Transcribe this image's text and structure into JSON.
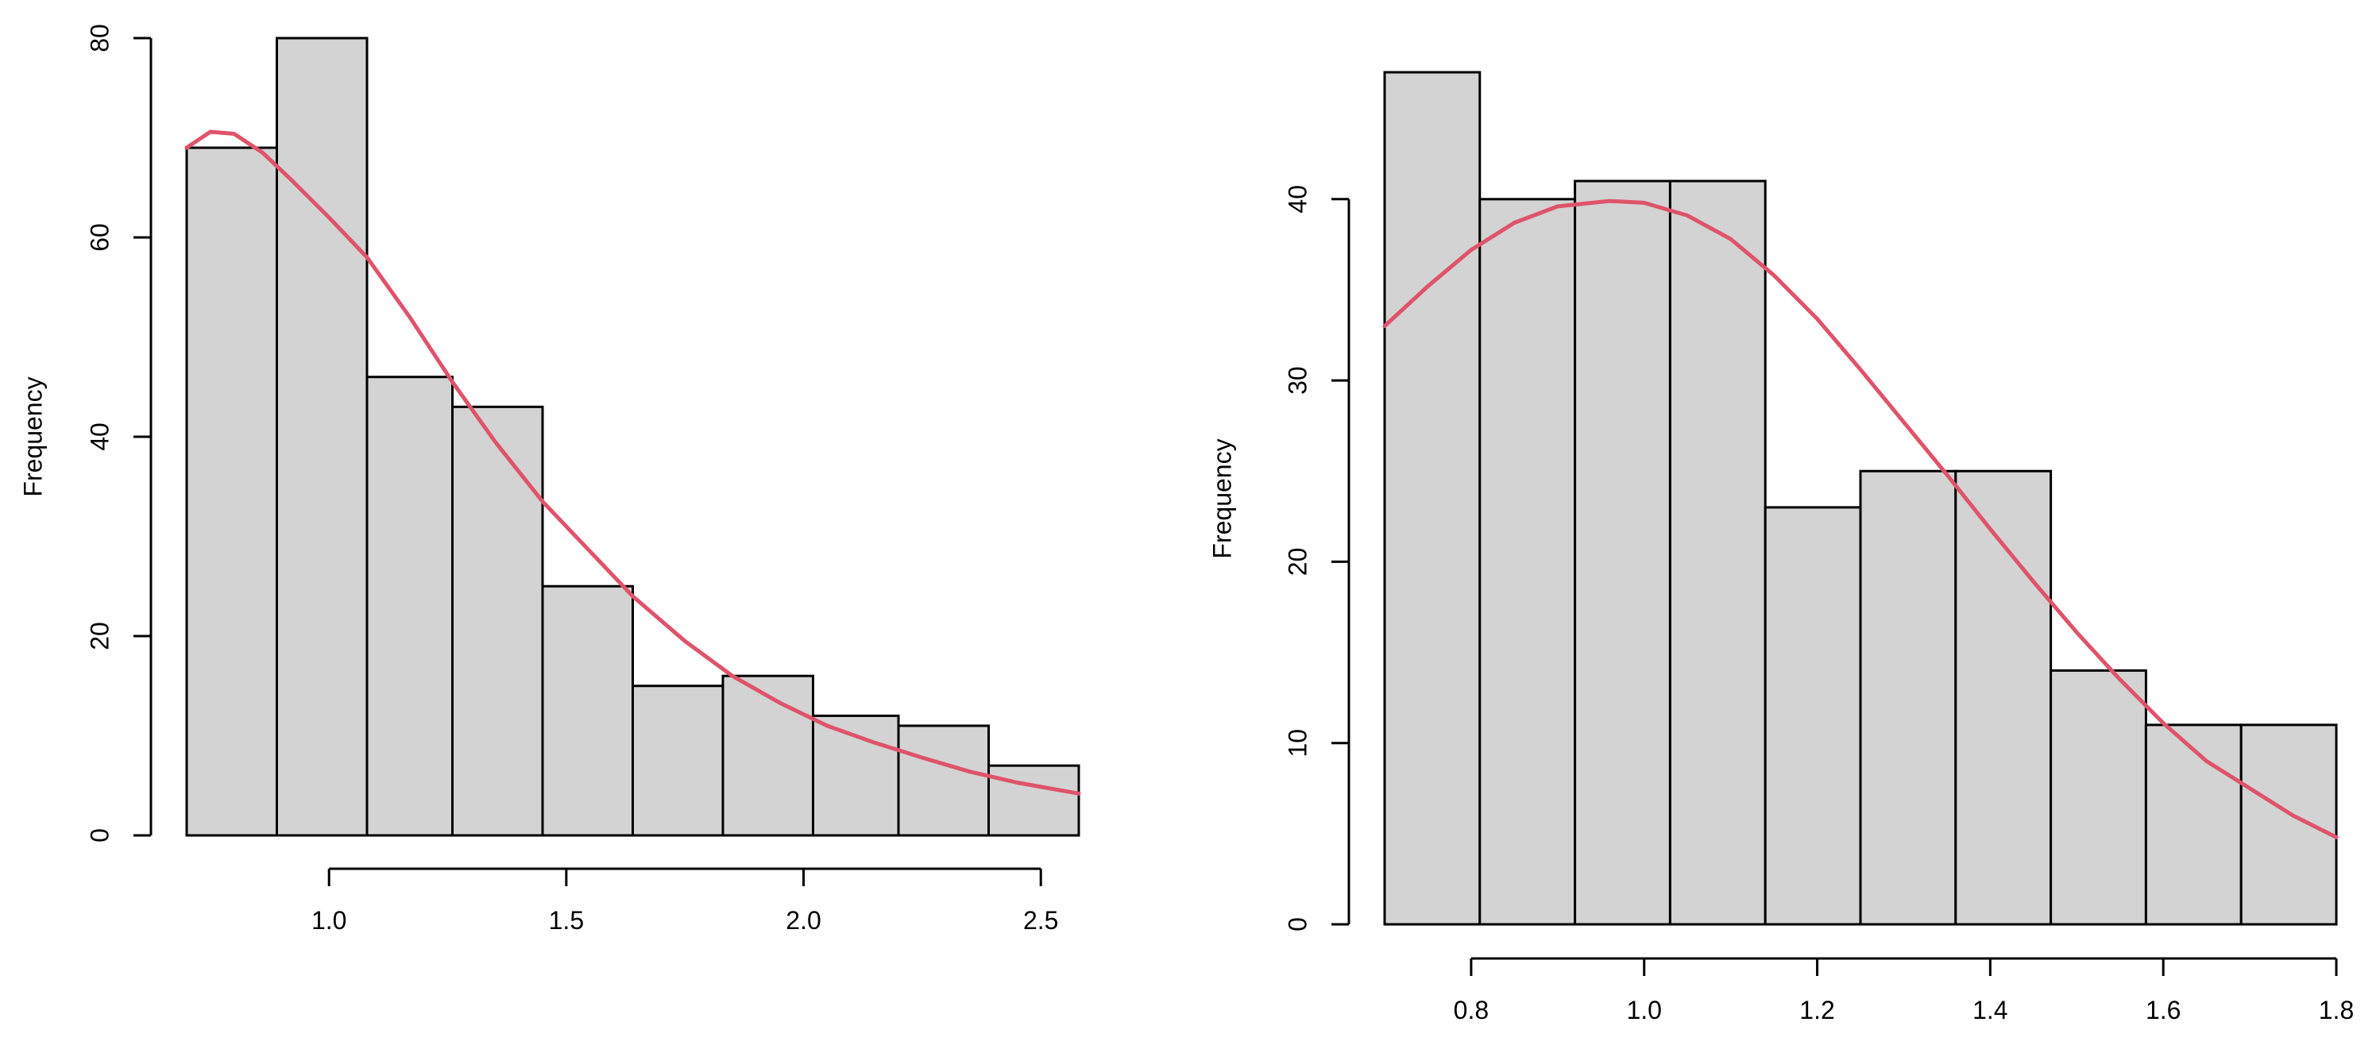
{
  "chart_data": [
    {
      "type": "bar",
      "subtype": "histogram",
      "bins": [
        {
          "x0": 0.7,
          "x1": 0.89,
          "count": 69
        },
        {
          "x0": 0.89,
          "x1": 1.08,
          "count": 80
        },
        {
          "x0": 1.08,
          "x1": 1.26,
          "count": 46
        },
        {
          "x0": 1.26,
          "x1": 1.45,
          "count": 43
        },
        {
          "x0": 1.45,
          "x1": 1.64,
          "count": 25
        },
        {
          "x0": 1.64,
          "x1": 1.83,
          "count": 15
        },
        {
          "x0": 1.83,
          "x1": 2.02,
          "count": 16
        },
        {
          "x0": 2.02,
          "x1": 2.2,
          "count": 12
        },
        {
          "x0": 2.2,
          "x1": 2.39,
          "count": 11
        },
        {
          "x0": 2.39,
          "x1": 2.58,
          "count": 7
        }
      ],
      "density_curve": {
        "color": "#DF536B",
        "points": [
          [
            0.7,
            69
          ],
          [
            0.75,
            70.6
          ],
          [
            0.8,
            70.4
          ],
          [
            0.86,
            68.5
          ],
          [
            0.92,
            65.8
          ],
          [
            1.0,
            62
          ],
          [
            1.08,
            58
          ],
          [
            1.17,
            52
          ],
          [
            1.26,
            45.5
          ],
          [
            1.35,
            39.5
          ],
          [
            1.45,
            33.5
          ],
          [
            1.55,
            28.5
          ],
          [
            1.64,
            24
          ],
          [
            1.75,
            19.5
          ],
          [
            1.85,
            16
          ],
          [
            1.95,
            13.3
          ],
          [
            2.05,
            11
          ],
          [
            2.15,
            9.3
          ],
          [
            2.25,
            7.8
          ],
          [
            2.35,
            6.4
          ],
          [
            2.45,
            5.3
          ],
          [
            2.58,
            4.2
          ]
        ]
      },
      "title": "",
      "xlabel": "",
      "ylabel": "Frequency",
      "xlim": [
        0.7,
        2.58
      ],
      "ylim": [
        0,
        80
      ],
      "xticks": [
        1.0,
        1.5,
        2.0,
        2.5
      ],
      "xtick_labels": [
        "1.0",
        "1.5",
        "2.0",
        "2.5"
      ],
      "yticks": [
        0,
        20,
        40,
        60,
        80
      ],
      "ytick_labels": [
        "0",
        "20",
        "40",
        "60",
        "80"
      ],
      "bar_fill": "#D3D3D3",
      "bar_stroke": "#000000",
      "grid": false
    },
    {
      "type": "bar",
      "subtype": "histogram",
      "bins": [
        {
          "x0": 0.7,
          "x1": 0.81,
          "count": 47
        },
        {
          "x0": 0.81,
          "x1": 0.92,
          "count": 40
        },
        {
          "x0": 0.92,
          "x1": 1.03,
          "count": 41
        },
        {
          "x0": 1.03,
          "x1": 1.14,
          "count": 41
        },
        {
          "x0": 1.14,
          "x1": 1.25,
          "count": 23
        },
        {
          "x0": 1.25,
          "x1": 1.36,
          "count": 25
        },
        {
          "x0": 1.36,
          "x1": 1.47,
          "count": 25
        },
        {
          "x0": 1.47,
          "x1": 1.58,
          "count": 14
        },
        {
          "x0": 1.58,
          "x1": 1.69,
          "count": 11
        },
        {
          "x0": 1.69,
          "x1": 1.8,
          "count": 11
        }
      ],
      "density_curve": {
        "color": "#DF536B",
        "points": [
          [
            0.7,
            33
          ],
          [
            0.75,
            35.2
          ],
          [
            0.8,
            37.2
          ],
          [
            0.85,
            38.7
          ],
          [
            0.9,
            39.6
          ],
          [
            0.96,
            39.9
          ],
          [
            1.0,
            39.8
          ],
          [
            1.05,
            39.1
          ],
          [
            1.1,
            37.8
          ],
          [
            1.15,
            35.8
          ],
          [
            1.2,
            33.4
          ],
          [
            1.25,
            30.6
          ],
          [
            1.3,
            27.7
          ],
          [
            1.35,
            24.8
          ],
          [
            1.4,
            21.8
          ],
          [
            1.45,
            18.9
          ],
          [
            1.5,
            16.1
          ],
          [
            1.55,
            13.5
          ],
          [
            1.6,
            11.1
          ],
          [
            1.65,
            9
          ],
          [
            1.7,
            7.5
          ],
          [
            1.75,
            6
          ],
          [
            1.8,
            4.8
          ]
        ]
      },
      "title": "",
      "xlabel": "",
      "ylabel": "Frequency",
      "xlim": [
        0.7,
        1.8
      ],
      "ylim": [
        0,
        47
      ],
      "xticks": [
        0.8,
        1.0,
        1.2,
        1.4,
        1.6,
        1.8
      ],
      "xtick_labels": [
        "0.8",
        "1.0",
        "1.2",
        "1.4",
        "1.6",
        "1.8"
      ],
      "yticks": [
        0,
        10,
        20,
        30,
        40
      ],
      "ytick_labels": [
        "0",
        "10",
        "20",
        "30",
        "40"
      ],
      "bar_fill": "#D3D3D3",
      "bar_stroke": "#000000",
      "grid": false
    }
  ]
}
